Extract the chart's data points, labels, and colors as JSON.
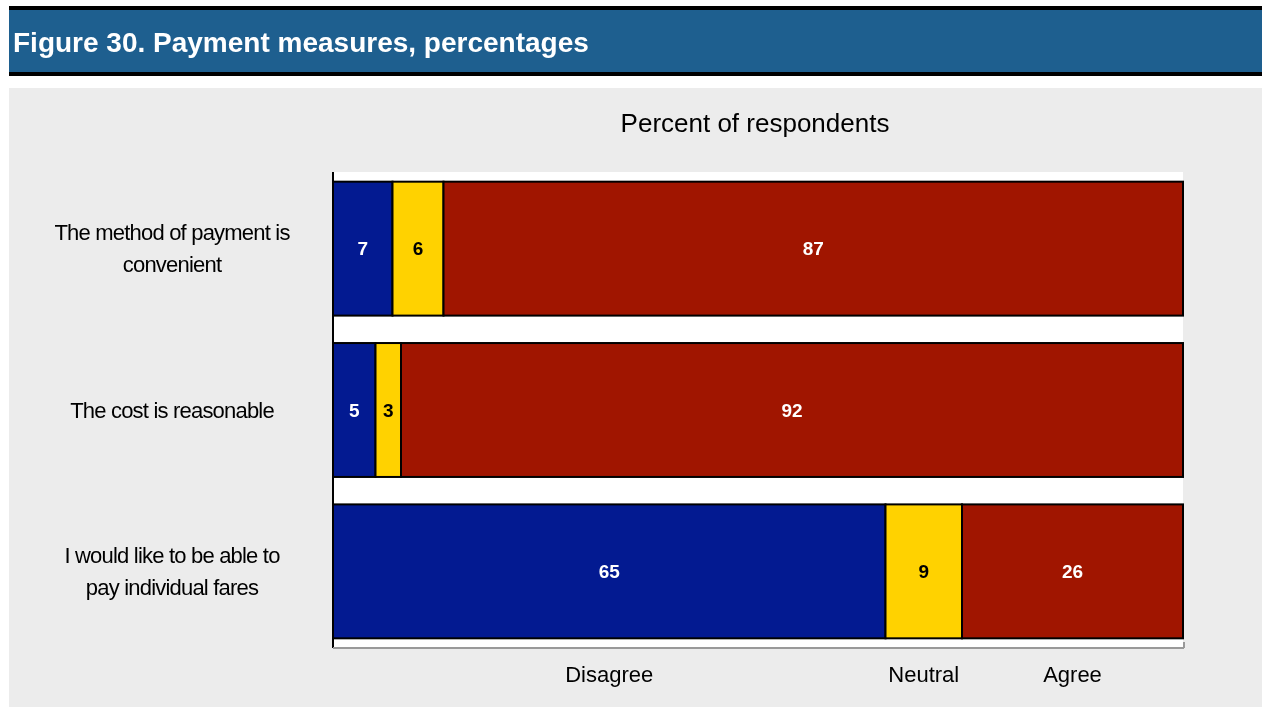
{
  "chart_data": {
    "type": "bar",
    "orientation": "horizontal",
    "stacked": true,
    "title": "Figure 30. Payment measures, percentages",
    "subtitle": "Percent of respondents",
    "categories": [
      "The method of payment is convenient",
      "The cost is reasonable",
      "I would like to be able to pay individual fares"
    ],
    "series": [
      {
        "name": "Disagree",
        "color": "#031a91",
        "values": [
          7,
          5,
          65
        ]
      },
      {
        "name": "Neutral",
        "color": "#ffd200",
        "values": [
          6,
          3,
          9
        ]
      },
      {
        "name": "Agree",
        "color": "#a01500",
        "values": [
          87,
          92,
          26
        ]
      }
    ],
    "data_labels": true,
    "legend": "bottom",
    "grid": false
  }
}
